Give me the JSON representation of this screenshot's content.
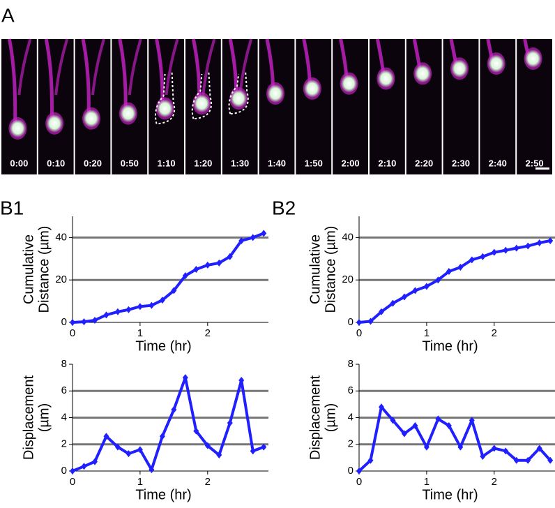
{
  "figure": {
    "label": "A",
    "frames": [
      "0:00",
      "0:10",
      "0:20",
      "0:50",
      "1:10",
      "1:20",
      "1:30",
      "1:40",
      "1:50",
      "2:00",
      "2:10",
      "2:20",
      "2:30",
      "2:40",
      "2:50"
    ]
  },
  "panel_labels": [
    "B1",
    "B2"
  ],
  "chart_data": [
    {
      "type": "line",
      "xlabel": "Time (hr)",
      "ylabel": [
        "Cumulative",
        "Distance (µm)"
      ],
      "x": [
        0,
        0.17,
        0.33,
        0.5,
        0.67,
        0.83,
        1,
        1.17,
        1.33,
        1.5,
        1.67,
        1.83,
        2,
        2.17,
        2.33,
        2.5,
        2.67,
        2.83
      ],
      "values": [
        0,
        0.3,
        1,
        3.5,
        5,
        6,
        7.5,
        8,
        10.5,
        15,
        22,
        25,
        27,
        28,
        31,
        38.5,
        40,
        42
      ],
      "color": "#1f1fff",
      "xlim": [
        0,
        2.9
      ],
      "xticks": [
        0,
        1,
        2
      ],
      "ylim": [
        0,
        50
      ],
      "yticks": [
        0,
        20,
        40
      ],
      "grid": true
    },
    {
      "type": "line",
      "xlabel": "Time (hr)",
      "ylabel": [
        "Cumulative",
        "Distance (µm)"
      ],
      "x": [
        0,
        0.17,
        0.33,
        0.5,
        0.67,
        0.83,
        1,
        1.17,
        1.33,
        1.5,
        1.67,
        1.83,
        2,
        2.17,
        2.33,
        2.5,
        2.67,
        2.83
      ],
      "values": [
        0,
        0.5,
        5,
        9,
        12,
        15,
        17,
        20,
        24,
        26,
        29.5,
        31,
        33,
        34,
        35,
        36,
        37.5,
        38.5
      ],
      "color": "#1f1fff",
      "xlim": [
        0,
        2.9
      ],
      "xticks": [
        0,
        1,
        2
      ],
      "ylim": [
        0,
        50
      ],
      "yticks": [
        0,
        20,
        40
      ],
      "grid": true
    },
    {
      "type": "line",
      "xlabel": "Time (hr)",
      "ylabel": [
        "Displacement",
        "(µm)"
      ],
      "x": [
        0,
        0.17,
        0.33,
        0.5,
        0.67,
        0.83,
        1,
        1.17,
        1.33,
        1.5,
        1.67,
        1.83,
        2,
        2.17,
        2.33,
        2.5,
        2.67,
        2.83
      ],
      "values": [
        0,
        0.35,
        0.7,
        2.6,
        1.8,
        1.3,
        1.6,
        0.1,
        2.6,
        4.6,
        7,
        3,
        1.9,
        1.2,
        3.6,
        6.8,
        1.5,
        1.8
      ],
      "color": "#1f1fff",
      "xlim": [
        0,
        2.9
      ],
      "xticks": [
        0,
        1,
        2
      ],
      "ylim": [
        0,
        8
      ],
      "yticks": [
        0,
        2,
        4,
        6,
        8
      ],
      "grid": true
    },
    {
      "type": "line",
      "xlabel": "Time (hr)",
      "ylabel": [
        "Displacement",
        "(µm)"
      ],
      "x": [
        0,
        0.17,
        0.33,
        0.5,
        0.67,
        0.83,
        1,
        1.17,
        1.33,
        1.5,
        1.67,
        1.83,
        2,
        2.17,
        2.33,
        2.5,
        2.67,
        2.83
      ],
      "values": [
        0,
        0.8,
        4.8,
        3.8,
        2.8,
        3.4,
        1.8,
        3.9,
        3.4,
        1.8,
        3.8,
        1.1,
        1.7,
        1.5,
        0.8,
        0.8,
        1.7,
        0.8
      ],
      "color": "#1f1fff",
      "xlim": [
        0,
        2.9
      ],
      "xticks": [
        0,
        1,
        2
      ],
      "ylim": [
        0,
        8
      ],
      "yticks": [
        0,
        2,
        4,
        6,
        8
      ],
      "grid": true
    }
  ]
}
